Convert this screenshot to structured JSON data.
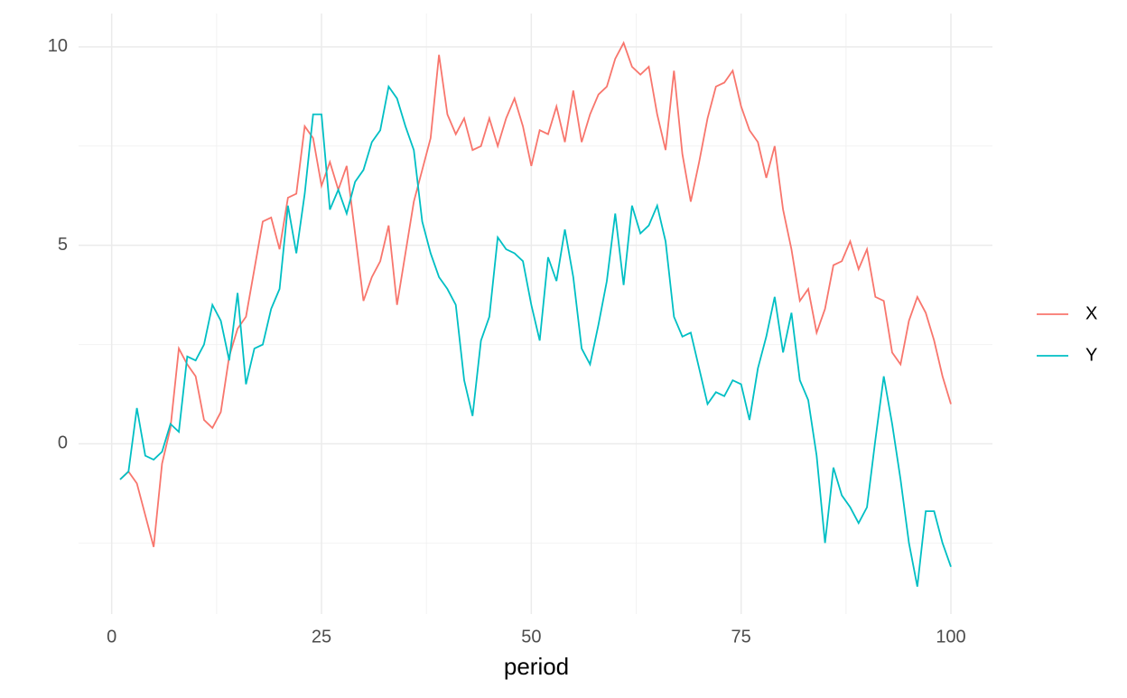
{
  "chart_data": {
    "type": "line",
    "x_label": "period",
    "x": [
      1,
      2,
      3,
      4,
      5,
      6,
      7,
      8,
      9,
      10,
      11,
      12,
      13,
      14,
      15,
      16,
      17,
      18,
      19,
      20,
      21,
      22,
      23,
      24,
      25,
      26,
      27,
      28,
      29,
      30,
      31,
      32,
      33,
      34,
      35,
      36,
      37,
      38,
      39,
      40,
      41,
      42,
      43,
      44,
      45,
      46,
      47,
      48,
      49,
      50,
      51,
      52,
      53,
      54,
      55,
      56,
      57,
      58,
      59,
      60,
      61,
      62,
      63,
      64,
      65,
      66,
      67,
      68,
      69,
      70,
      71,
      72,
      73,
      74,
      75,
      76,
      77,
      78,
      79,
      80,
      81,
      82,
      83,
      84,
      85,
      86,
      87,
      88,
      89,
      90,
      91,
      92,
      93,
      94,
      95,
      96,
      97,
      98,
      99,
      100
    ],
    "series": [
      {
        "name": "X",
        "color": "#f8766d",
        "values": [
          -0.9,
          -0.7,
          -1.0,
          -1.8,
          -2.6,
          -0.5,
          0.4,
          2.4,
          2.0,
          1.7,
          0.6,
          0.4,
          0.8,
          2.2,
          2.9,
          3.2,
          4.4,
          5.6,
          5.7,
          4.9,
          6.2,
          6.3,
          8.0,
          7.7,
          6.5,
          7.1,
          6.4,
          7.0,
          5.3,
          3.6,
          4.2,
          4.6,
          5.5,
          3.5,
          4.8,
          6.1,
          6.9,
          7.7,
          9.8,
          8.3,
          7.8,
          8.2,
          7.4,
          7.5,
          8.2,
          7.5,
          8.2,
          8.7,
          8.0,
          7.0,
          7.9,
          7.8,
          8.5,
          7.6,
          8.9,
          7.6,
          8.3,
          8.8,
          9.0,
          9.7,
          10.1,
          9.5,
          9.3,
          9.5,
          8.3,
          7.4,
          9.4,
          7.3,
          6.1,
          7.1,
          8.2,
          9.0,
          9.1,
          9.4,
          8.5,
          7.9,
          7.6,
          6.7,
          7.5,
          5.9,
          4.9,
          3.6,
          3.9,
          2.8,
          3.4,
          4.5,
          4.6,
          5.1,
          4.4,
          4.9,
          3.7,
          3.6,
          2.3,
          2.0,
          3.1,
          3.7,
          3.3,
          2.6,
          1.7,
          1.0
        ]
      },
      {
        "name": "Y",
        "color": "#00bfc4",
        "values": [
          -0.9,
          -0.7,
          0.9,
          -0.3,
          -0.4,
          -0.2,
          0.5,
          0.3,
          2.2,
          2.1,
          2.5,
          3.5,
          3.1,
          2.1,
          3.8,
          1.5,
          2.4,
          2.5,
          3.4,
          3.9,
          6.0,
          4.8,
          6.3,
          8.3,
          8.3,
          5.9,
          6.4,
          5.8,
          6.6,
          6.9,
          7.6,
          7.9,
          9.0,
          8.7,
          8.0,
          7.4,
          5.6,
          4.8,
          4.2,
          3.9,
          3.5,
          1.6,
          0.7,
          2.6,
          3.2,
          5.2,
          4.9,
          4.8,
          4.6,
          3.5,
          2.6,
          4.7,
          4.1,
          5.4,
          4.2,
          2.4,
          2.0,
          3.0,
          4.1,
          5.8,
          4.0,
          6.0,
          5.3,
          5.5,
          6.0,
          5.1,
          3.2,
          2.7,
          2.8,
          1.9,
          1.0,
          1.3,
          1.2,
          1.6,
          1.5,
          0.6,
          1.9,
          2.7,
          3.7,
          2.3,
          3.3,
          1.6,
          1.1,
          -0.3,
          -2.5,
          -0.6,
          -1.3,
          -1.6,
          -2.0,
          -1.6,
          0.1,
          1.7,
          0.5,
          -0.9,
          -2.5,
          -3.6,
          -1.7,
          -1.7,
          -2.5,
          -3.1
        ]
      }
    ],
    "xlim": [
      -3.95,
      104.95
    ],
    "xticks": [
      0,
      25,
      50,
      75,
      100
    ],
    "x_minor_ticks": [
      12.5,
      37.5,
      62.5,
      87.5
    ],
    "ylim": [
      -4.29,
      10.84
    ],
    "yticks": [
      0,
      5,
      10
    ],
    "y_minor_ticks": [
      -2.5,
      2.5,
      7.5
    ],
    "grid": true,
    "legend_position": "right"
  }
}
